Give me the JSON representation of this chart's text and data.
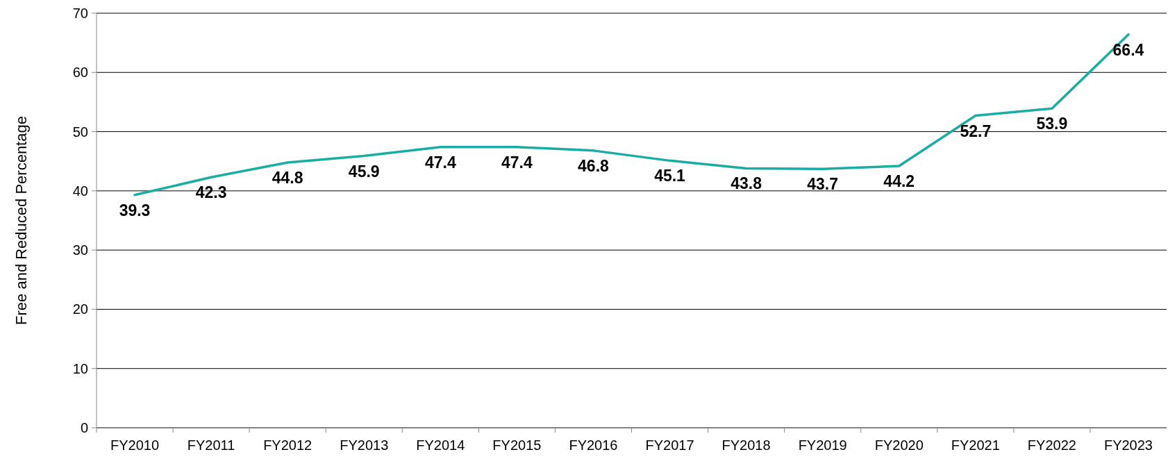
{
  "chart_data": {
    "type": "line",
    "ylabel": "Free and Reduced Percentage",
    "categories": [
      "FY2010",
      "FY2011",
      "FY2012",
      "FY2013",
      "FY2014",
      "FY2015",
      "FY2016",
      "FY2017",
      "FY2018",
      "FY2019",
      "FY2020",
      "FY2021",
      "FY2022",
      "FY2023"
    ],
    "series": [
      {
        "color": "#1aada3",
        "values": [
          39.3,
          42.3,
          44.8,
          45.9,
          47.4,
          47.4,
          46.8,
          45.1,
          43.8,
          43.7,
          44.2,
          52.7,
          53.9,
          66.4
        ]
      }
    ],
    "ylim": [
      0,
      70
    ],
    "yticks": [
      0,
      10,
      20,
      30,
      40,
      50,
      60,
      70
    ],
    "grid": "y",
    "data_labels": true,
    "marker": "none",
    "line_style": "solid"
  }
}
